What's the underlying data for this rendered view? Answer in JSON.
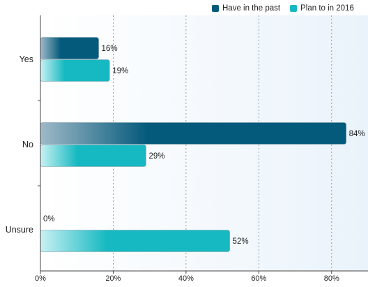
{
  "chart_data": {
    "type": "bar",
    "orientation": "horizontal",
    "categories": [
      "Yes",
      "No",
      "Unsure"
    ],
    "series": [
      {
        "name": "Have in the past",
        "values": [
          16,
          84,
          0
        ],
        "color": "#045a7b"
      },
      {
        "name": "Plan to in 2016",
        "values": [
          19,
          29,
          52
        ],
        "color": "#16b9c1"
      }
    ],
    "data_labels": [
      [
        "16%",
        "84%",
        "0%"
      ],
      [
        "19%",
        "29%",
        "52%"
      ]
    ],
    "x_ticks": [
      "0%",
      "20%",
      "40%",
      "60%",
      "80%"
    ],
    "xlim": [
      0,
      90
    ],
    "grid": true,
    "legend_position": "top-right"
  }
}
